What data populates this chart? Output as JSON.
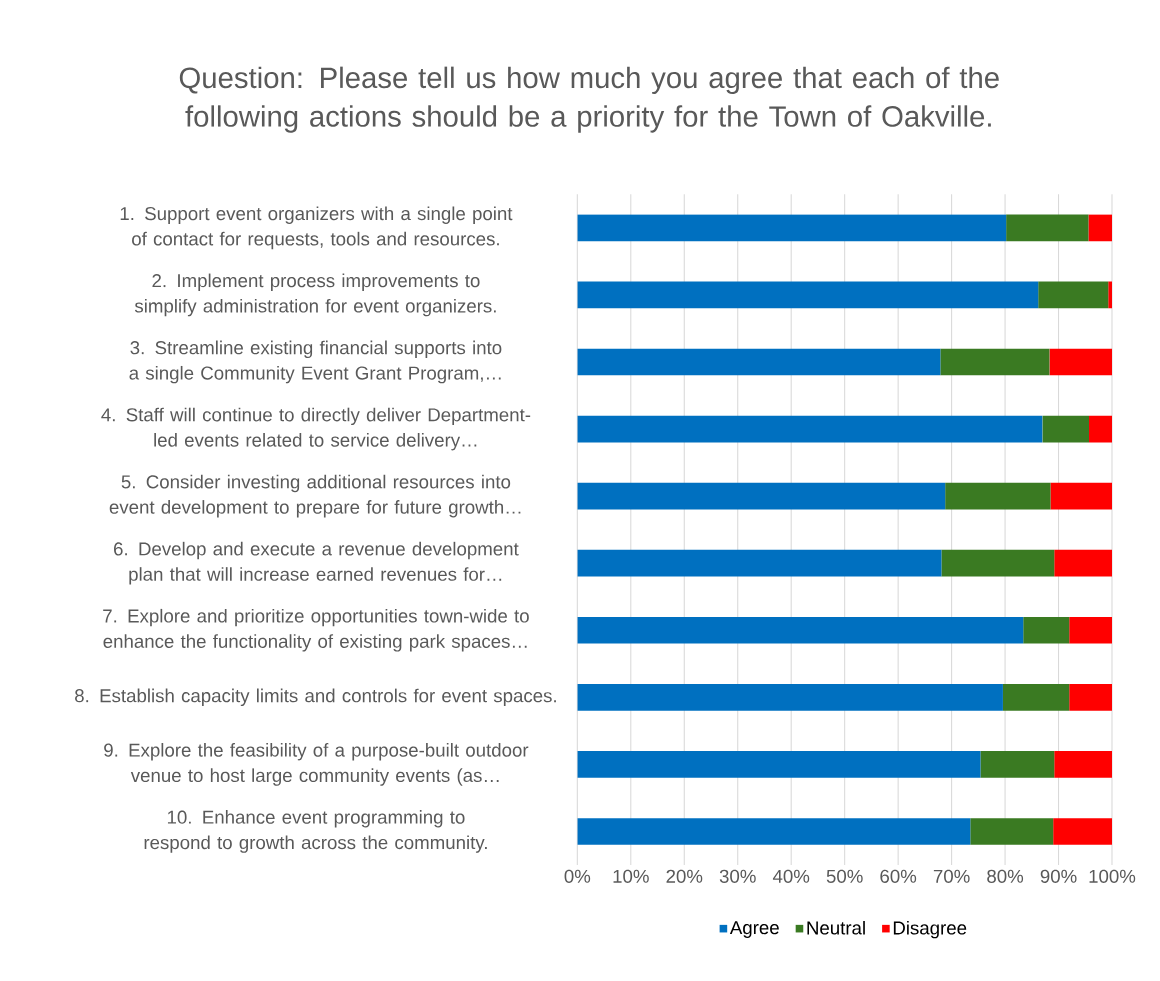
{
  "chart_data": {
    "type": "bar",
    "orientation": "horizontal",
    "stacked": true,
    "title": "Question: Please tell us how much you agree that each of the following actions should be a priority for the Town of Oakville.",
    "categories": [
      "1. Support event organizers with a single point of contact for requests, tools and resources.",
      "2. Implement process improvements to simplify administration for event organizers.",
      "3. Streamline existing financial supports into a single Community Event Grant Program,…",
      "4. Staff will continue to directly deliver Department-led events related to service delivery…",
      "5. Consider investing additional resources into event development to prepare for future growth…",
      "6. Develop and execute a revenue development plan that will increase earned revenues for…",
      "7. Explore and prioritize opportunities town-wide to enhance the functionality of existing park spaces…",
      "8. Establish capacity limits and controls for event spaces.",
      "9. Explore the feasibility of a purpose-built outdoor venue to host large community events (as…",
      "10. Enhance event programming to respond to growth across the community."
    ],
    "series": [
      {
        "name": "Agree",
        "color": "#0070c0",
        "values": [
          80.2,
          86.2,
          67.9,
          87.0,
          68.8,
          68.1,
          83.4,
          79.6,
          75.4,
          73.5
        ]
      },
      {
        "name": "Neutral",
        "color": "#3a7a22",
        "values": [
          15.4,
          13.1,
          20.4,
          8.7,
          19.7,
          21.1,
          8.6,
          12.4,
          13.8,
          15.5
        ]
      },
      {
        "name": "Disagree",
        "color": "#ff0000",
        "values": [
          4.4,
          0.7,
          11.7,
          4.3,
          11.5,
          10.8,
          8.0,
          8.0,
          10.8,
          11.0
        ]
      }
    ],
    "xlim": [
      0,
      100
    ],
    "xticks": [
      {
        "value": 0,
        "label": "0%"
      },
      {
        "value": 10,
        "label": "10%"
      },
      {
        "value": 20,
        "label": "20%"
      },
      {
        "value": 30,
        "label": "30%"
      },
      {
        "value": 40,
        "label": "40%"
      },
      {
        "value": 50,
        "label": "50%"
      },
      {
        "value": 60,
        "label": "60%"
      },
      {
        "value": 70,
        "label": "70%"
      },
      {
        "value": 80,
        "label": "80%"
      },
      {
        "value": 90,
        "label": "90%"
      },
      {
        "value": 100,
        "label": "100%"
      }
    ],
    "grid": "x",
    "legend": "bottom"
  }
}
